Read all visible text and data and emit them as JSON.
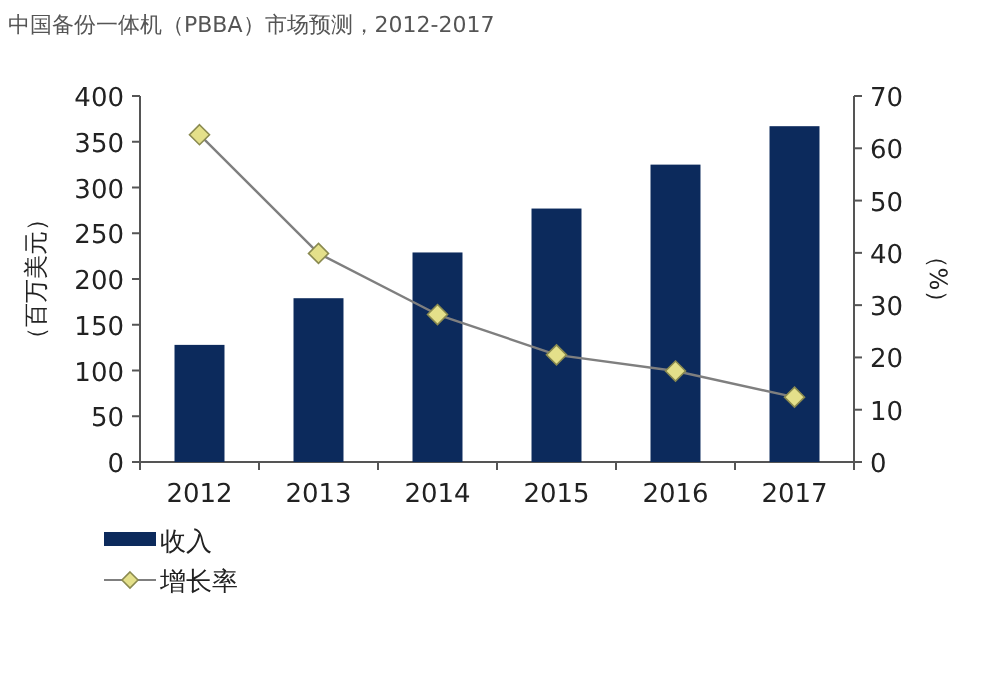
{
  "chart_data": {
    "type": "bar",
    "title": "中国备份一体机（PBBA）市场预测，2012-2017",
    "ylabel": "（百万美元）",
    "y2label": "（%）",
    "categories": [
      "2012",
      "2013",
      "2014",
      "2015",
      "2016",
      "2017"
    ],
    "series": [
      {
        "name": "收入",
        "color": "#0c2a5c",
        "values": [
          128,
          179,
          229,
          277,
          325,
          367
        ]
      },
      {
        "name": "增长率",
        "type": "line",
        "axis": "y2",
        "color": "#7f7f7f",
        "marker": "diamond",
        "values": [
          62.6,
          39.9,
          28.2,
          20.5,
          17.4,
          12.4
        ]
      }
    ],
    "ylim": [
      0,
      400
    ],
    "yticks": [
      0,
      50,
      100,
      150,
      200,
      250,
      300,
      350,
      400
    ],
    "y2lim": [
      0,
      70
    ],
    "y2ticks": [
      0,
      10,
      20,
      30,
      40,
      50,
      60,
      70
    ],
    "legend": "bottom left"
  }
}
